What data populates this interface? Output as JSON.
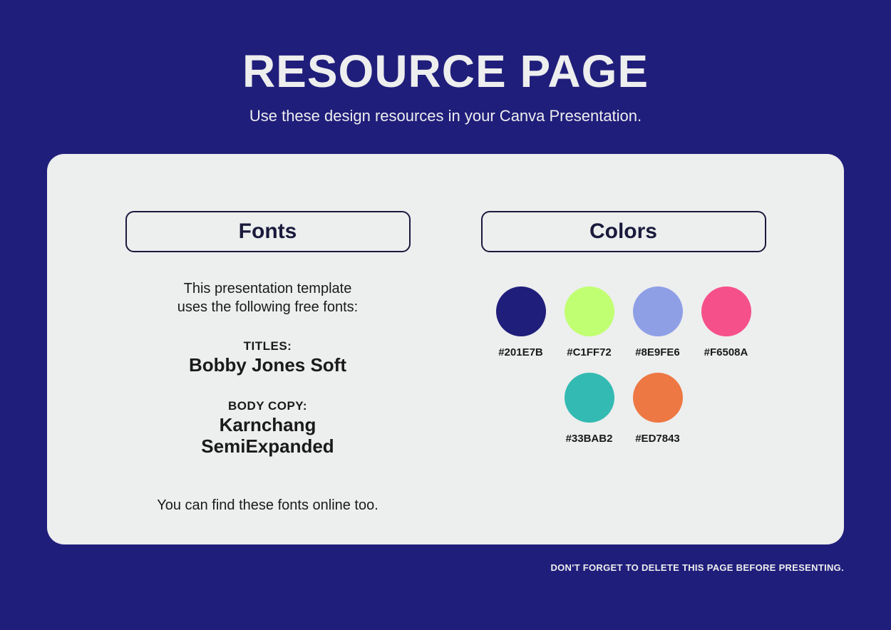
{
  "header": {
    "title": "RESOURCE PAGE",
    "subtitle": "Use these design resources in your Canva Presentation."
  },
  "fonts": {
    "section_label": "Fonts",
    "intro_line1": "This presentation template",
    "intro_line2": "uses the following free fonts:",
    "titles_label": "TITLES:",
    "titles_font": "Bobby Jones Soft",
    "body_label": "BODY COPY:",
    "body_font_line1": "Karnchang",
    "body_font_line2": "SemiExpanded",
    "footer": "You can find these fonts online too."
  },
  "colors": {
    "section_label": "Colors",
    "swatches": [
      {
        "hex": "#201E7B",
        "label": "#201E7B"
      },
      {
        "hex": "#C1FF72",
        "label": "#C1FF72"
      },
      {
        "hex": "#8E9FE6",
        "label": "#8E9FE6"
      },
      {
        "hex": "#F6508A",
        "label": "#F6508A"
      },
      {
        "hex": "#33BAB2",
        "label": "#33BAB2"
      },
      {
        "hex": "#ED7843",
        "label": "#ED7843"
      }
    ]
  },
  "footer_note": "DON'T FORGET TO DELETE THIS PAGE BEFORE PRESENTING.",
  "style": {
    "background_color": "#201e7b",
    "card_background": "#edeeee",
    "card_border_radius": 24,
    "title_color": "#edeeee",
    "title_fontsize": 64,
    "subtitle_fontsize": 22,
    "section_label_border": "#1a1a3c",
    "section_label_fontsize": 30,
    "body_text_color": "#1a1a1a",
    "swatch_diameter": 70,
    "swatch_label_fontsize": 15
  }
}
